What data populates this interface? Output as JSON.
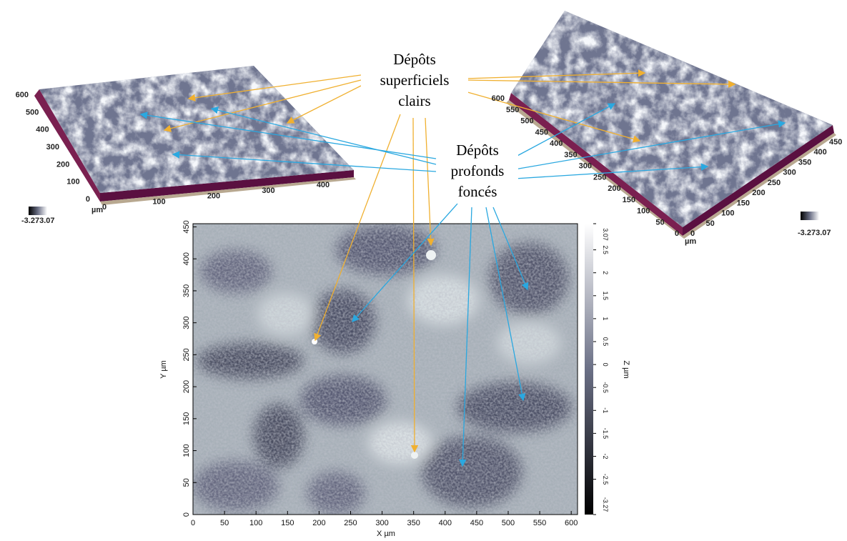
{
  "annotations": {
    "bright": [
      "Dépôts",
      "superficiels",
      "clairs"
    ],
    "dark": [
      "Dépôts",
      "profonds",
      "foncés"
    ]
  },
  "surface_left": {
    "z_ticks": [
      0,
      100,
      200,
      300,
      400,
      500,
      600
    ],
    "x_ticks": [
      0,
      100,
      200,
      300,
      400
    ],
    "unit": "µm",
    "scale": {
      "min": -3.27,
      "max": 3.07
    }
  },
  "surface_right": {
    "y_ticks": [
      0,
      50,
      100,
      150,
      200,
      250,
      300,
      350,
      400,
      450,
      500,
      550,
      600
    ],
    "x_ticks": [
      0,
      50,
      100,
      150,
      200,
      250,
      300,
      350,
      400,
      450
    ],
    "unit": "µm",
    "scale": {
      "min": -3.27,
      "max": 3.07
    }
  },
  "map": {
    "xlabel": "X µm",
    "ylabel": "Y µm",
    "zlabel": "Z µm",
    "xlim": [
      0,
      610
    ],
    "ylim": [
      0,
      455
    ],
    "xticks": [
      0,
      50,
      100,
      150,
      200,
      250,
      300,
      350,
      400,
      450,
      500,
      550,
      600
    ],
    "yticks": [
      0,
      50,
      100,
      150,
      200,
      250,
      300,
      350,
      400,
      450
    ],
    "zlim": [
      -3.27,
      3.07
    ],
    "zticks": [
      3.07,
      2.5,
      2,
      1.5,
      1,
      0.5,
      0,
      -0.5,
      -1,
      -1.5,
      -2,
      -2.5,
      -3.27
    ]
  }
}
